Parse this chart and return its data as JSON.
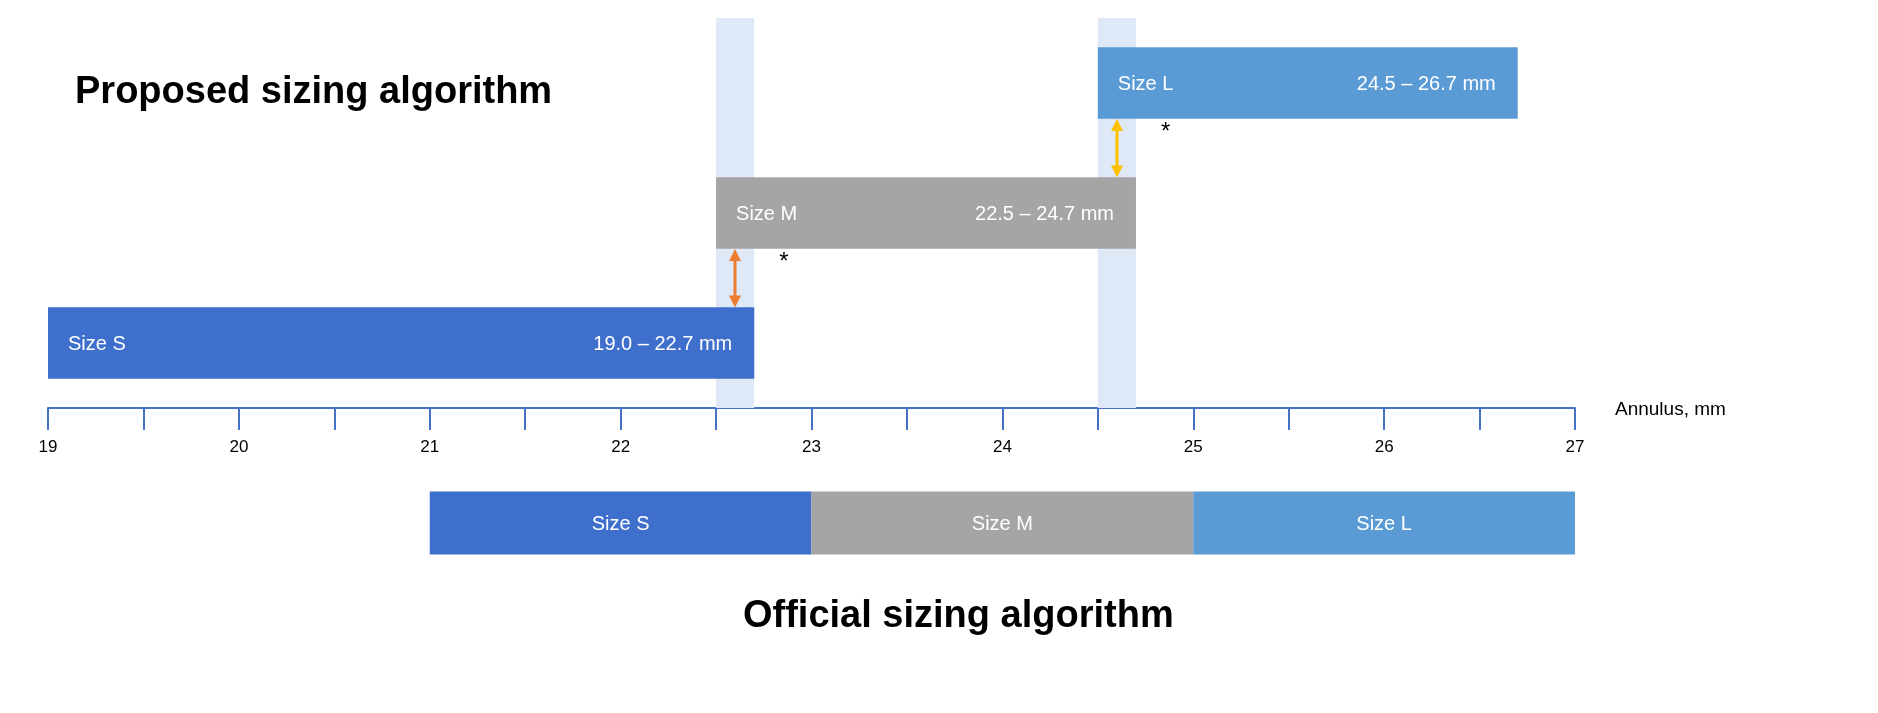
{
  "chart_data": [
    {
      "type": "bar",
      "orientation": "horizontal",
      "title": "Proposed sizing algorithm",
      "xlabel": "Annulus, mm",
      "categories": [
        "Size L",
        "Size M",
        "Size S"
      ],
      "values": [
        2.2,
        2.2,
        3.7
      ],
      "base": [
        24.5,
        22.5,
        19.0
      ],
      "colors": [
        "#5b9bd5",
        "#a5a5a5",
        "#3f6fcc"
      ],
      "xlim": [
        19,
        27
      ],
      "xticks": [
        19,
        20,
        21,
        22,
        23,
        24,
        25,
        26,
        27
      ],
      "bands": [
        {
          "axis": "x",
          "from": 22.5,
          "to": 22.7,
          "color": "#dfe8f6"
        },
        {
          "axis": "x",
          "from": 24.5,
          "to": 24.7,
          "color": "#dfe8f6"
        }
      ],
      "annotations": [
        {
          "text": "24.5 – 26.7 mm",
          "x": 26.7
        },
        {
          "text": "22.5 – 24.7 mm",
          "x": 24.7
        },
        {
          "text": "19.0 – 22.7 mm",
          "x": 22.7
        },
        "*",
        "*"
      ],
      "grid": false,
      "legend": false
    },
    {
      "type": "bar",
      "orientation": "horizontal",
      "title": "Official sizing algorithm",
      "categories": [
        null
      ],
      "series": [
        {
          "name": "Size S",
          "color": "#3f6fcc",
          "values": [
            2
          ],
          "base": [
            21
          ]
        },
        {
          "name": "Size M",
          "color": "#a5a5a5",
          "values": [
            2
          ],
          "base": [
            23
          ]
        },
        {
          "name": "Size L",
          "color": "#5b9bd5",
          "values": [
            2
          ],
          "base": [
            25
          ]
        }
      ],
      "xlim": [
        19,
        27
      ],
      "tick_labels": false,
      "grid": false,
      "legend": false
    }
  ]
}
